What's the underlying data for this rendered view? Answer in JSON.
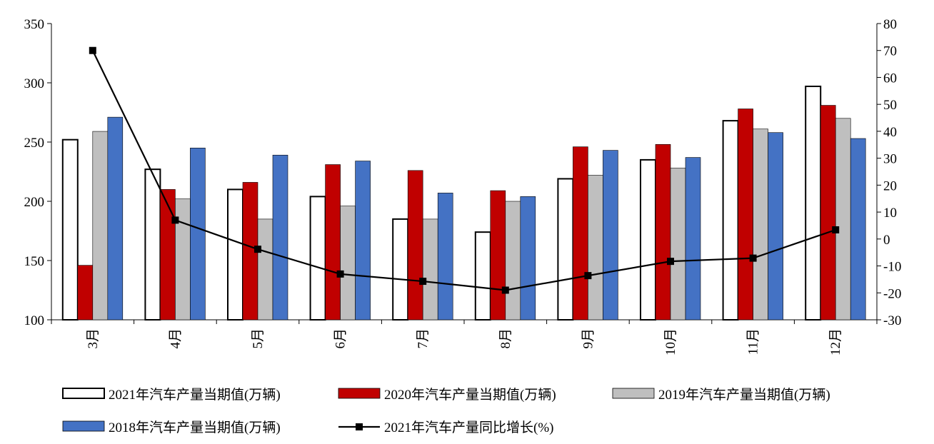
{
  "chart_data": {
    "type": "bar",
    "categories": [
      "3月",
      "4月",
      "5月",
      "6月",
      "7月",
      "8月",
      "9月",
      "10月",
      "11月",
      "12月"
    ],
    "series": [
      {
        "name": "2021年汽车产量当期值(万辆)",
        "kind": "bar",
        "axis": "left",
        "color": "#ffffff",
        "stroke": "#000000",
        "values": [
          252,
          227,
          210,
          204,
          185,
          174,
          219,
          235,
          268,
          297
        ]
      },
      {
        "name": "2020年汽车产量当期值(万辆)",
        "kind": "bar",
        "axis": "left",
        "color": "#c00000",
        "stroke": "#000000",
        "values": [
          146,
          210,
          216,
          231,
          226,
          209,
          246,
          248,
          278,
          281
        ]
      },
      {
        "name": "2019年汽车产量当期值(万辆)",
        "kind": "bar",
        "axis": "left",
        "color": "#bfbfbf",
        "stroke": "#000000",
        "values": [
          259,
          202,
          185,
          196,
          185,
          200,
          222,
          228,
          261,
          270
        ]
      },
      {
        "name": "2018年汽车产量当期值(万辆)",
        "kind": "bar",
        "axis": "left",
        "color": "#4472c4",
        "stroke": "#000000",
        "values": [
          271,
          245,
          239,
          234,
          207,
          204,
          243,
          237,
          258,
          253
        ]
      },
      {
        "name": "2021年汽车产量同比增长(%)",
        "kind": "line",
        "axis": "right",
        "color": "#000000",
        "values": [
          70,
          7,
          -3.8,
          -13,
          -15.7,
          -19,
          -13.6,
          -8.3,
          -7.1,
          3.4
        ]
      }
    ],
    "y_left": {
      "min": 100,
      "max": 350,
      "ticks": [
        100,
        150,
        200,
        250,
        300,
        350
      ]
    },
    "y_right": {
      "min": -30,
      "max": 80,
      "ticks": [
        -30,
        -20,
        -10,
        0,
        10,
        20,
        30,
        40,
        50,
        60,
        70,
        80
      ]
    },
    "grid": false,
    "legend_placement": "bottom",
    "x_label_rotation": "vertical"
  }
}
